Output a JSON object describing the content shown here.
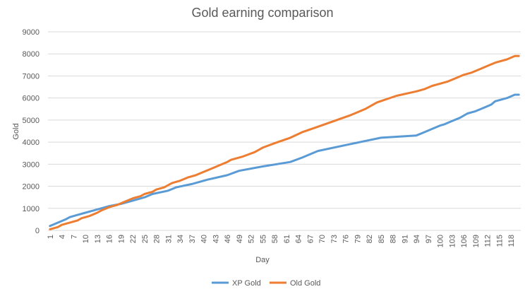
{
  "chart_data": {
    "type": "line",
    "title": "Gold earning comparison",
    "xlabel": "Day",
    "ylabel": "Gold",
    "ylim": [
      0,
      9000
    ],
    "y_ticks": [
      0,
      1000,
      2000,
      3000,
      4000,
      5000,
      6000,
      7000,
      8000,
      9000
    ],
    "x_range": [
      1,
      120
    ],
    "x_tick_labels": [
      1,
      4,
      7,
      10,
      13,
      16,
      19,
      22,
      25,
      28,
      31,
      34,
      37,
      40,
      43,
      46,
      49,
      52,
      55,
      58,
      61,
      64,
      67,
      70,
      73,
      76,
      79,
      82,
      85,
      88,
      91,
      94,
      97,
      100,
      103,
      106,
      109,
      112,
      115,
      118
    ],
    "grid": true,
    "legend_position": "bottom",
    "series": [
      {
        "name": "XP Gold",
        "color": "#5b9bd5",
        "points": [
          [
            1,
            200
          ],
          [
            5,
            500
          ],
          [
            6,
            600
          ],
          [
            8,
            700
          ],
          [
            10,
            800
          ],
          [
            12,
            900
          ],
          [
            14,
            1000
          ],
          [
            16,
            1100
          ],
          [
            19,
            1200
          ],
          [
            22,
            1350
          ],
          [
            25,
            1500
          ],
          [
            27,
            1650
          ],
          [
            31,
            1800
          ],
          [
            33,
            1950
          ],
          [
            37,
            2100
          ],
          [
            41,
            2300
          ],
          [
            46,
            2500
          ],
          [
            49,
            2700
          ],
          [
            55,
            2900
          ],
          [
            62,
            3100
          ],
          [
            65,
            3300
          ],
          [
            69,
            3600
          ],
          [
            77,
            3900
          ],
          [
            85,
            4200
          ],
          [
            94,
            4300
          ],
          [
            96,
            4450
          ],
          [
            98,
            4600
          ],
          [
            100,
            4750
          ],
          [
            101,
            4800
          ],
          [
            103,
            4950
          ],
          [
            105,
            5100
          ],
          [
            107,
            5300
          ],
          [
            109,
            5400
          ],
          [
            111,
            5550
          ],
          [
            113,
            5700
          ],
          [
            114,
            5850
          ],
          [
            117,
            6000
          ],
          [
            119,
            6150
          ],
          [
            120,
            6150
          ]
        ]
      },
      {
        "name": "Old Gold",
        "color": "#ed7d31",
        "points": [
          [
            1,
            50
          ],
          [
            3,
            150
          ],
          [
            4,
            250
          ],
          [
            6,
            350
          ],
          [
            8,
            450
          ],
          [
            9,
            550
          ],
          [
            11,
            650
          ],
          [
            13,
            800
          ],
          [
            14,
            900
          ],
          [
            16,
            1050
          ],
          [
            18,
            1150
          ],
          [
            20,
            1300
          ],
          [
            22,
            1450
          ],
          [
            24,
            1550
          ],
          [
            25,
            1650
          ],
          [
            27,
            1750
          ],
          [
            28,
            1850
          ],
          [
            30,
            1950
          ],
          [
            31,
            2050
          ],
          [
            32,
            2150
          ],
          [
            34,
            2250
          ],
          [
            36,
            2400
          ],
          [
            38,
            2500
          ],
          [
            40,
            2650
          ],
          [
            42,
            2800
          ],
          [
            44,
            2950
          ],
          [
            46,
            3100
          ],
          [
            47,
            3200
          ],
          [
            50,
            3350
          ],
          [
            53,
            3550
          ],
          [
            55,
            3750
          ],
          [
            58,
            3950
          ],
          [
            62,
            4200
          ],
          [
            65,
            4450
          ],
          [
            69,
            4700
          ],
          [
            73,
            4950
          ],
          [
            77,
            5200
          ],
          [
            81,
            5500
          ],
          [
            84,
            5800
          ],
          [
            89,
            6100
          ],
          [
            94,
            6300
          ],
          [
            96,
            6400
          ],
          [
            98,
            6550
          ],
          [
            100,
            6650
          ],
          [
            102,
            6750
          ],
          [
            104,
            6900
          ],
          [
            106,
            7050
          ],
          [
            108,
            7150
          ],
          [
            110,
            7300
          ],
          [
            112,
            7450
          ],
          [
            114,
            7600
          ],
          [
            117,
            7750
          ],
          [
            119,
            7900
          ],
          [
            120,
            7900
          ]
        ]
      }
    ]
  }
}
